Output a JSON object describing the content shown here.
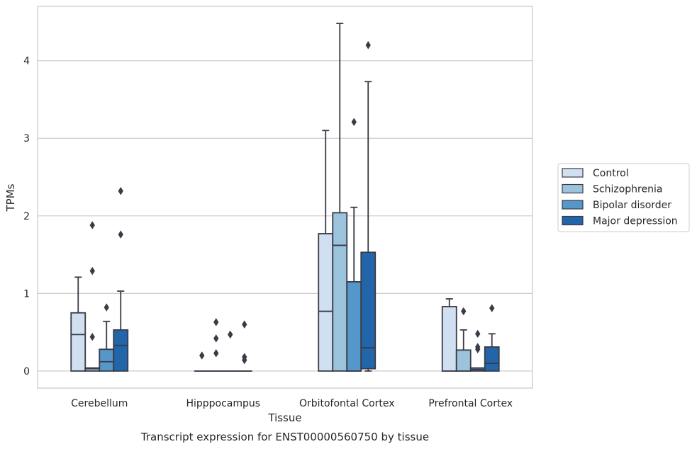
{
  "caption": "Transcript expression for ENST00000560750 by tissue",
  "chart_data": {
    "type": "box",
    "xlabel": "Tissue",
    "ylabel": "TPMs",
    "ylim": [
      -0.22,
      4.7
    ],
    "yticks": [
      0,
      1,
      2,
      3,
      4
    ],
    "grid": true,
    "legend_position": "right",
    "categories": [
      "Cerebellum",
      "Hipppocampus",
      "Orbitofontal Cortex",
      "Prefrontal Cortex"
    ],
    "series": [
      {
        "name": "Control",
        "color": "#d1e0f0",
        "boxes": [
          {
            "q1": 0,
            "median": 0.47,
            "q3": 0.75,
            "whisker_low": 0,
            "whisker_high": 1.21,
            "outliers": []
          },
          {
            "q1": 0,
            "median": 0,
            "q3": 0,
            "whisker_low": 0,
            "whisker_high": 0,
            "outliers": [
              0.2
            ]
          },
          {
            "q1": 0,
            "median": 0.77,
            "q3": 1.77,
            "whisker_low": 0,
            "whisker_high": 3.1,
            "outliers": []
          },
          {
            "q1": 0,
            "median": 0,
            "q3": 0.83,
            "whisker_low": 0,
            "whisker_high": 0.93,
            "outliers": []
          }
        ]
      },
      {
        "name": "Schizophrenia",
        "color": "#9cc3dc",
        "boxes": [
          {
            "q1": 0,
            "median": 0.03,
            "q3": 0.04,
            "whisker_low": 0,
            "whisker_high": 0.04,
            "outliers": [
              0.44,
              1.29,
              1.88
            ]
          },
          {
            "q1": 0,
            "median": 0,
            "q3": 0,
            "whisker_low": 0,
            "whisker_high": 0,
            "outliers": [
              0.23,
              0.42,
              0.63
            ]
          },
          {
            "q1": 0,
            "median": 1.62,
            "q3": 2.04,
            "whisker_low": 0,
            "whisker_high": 4.48,
            "outliers": []
          },
          {
            "q1": 0,
            "median": 0,
            "q3": 0.27,
            "whisker_low": 0,
            "whisker_high": 0.53,
            "outliers": [
              0.77
            ]
          }
        ]
      },
      {
        "name": "Bipolar disorder",
        "color": "#5597c8",
        "boxes": [
          {
            "q1": 0,
            "median": 0.12,
            "q3": 0.28,
            "whisker_low": 0,
            "whisker_high": 0.64,
            "outliers": [
              0.82
            ]
          },
          {
            "q1": 0,
            "median": 0,
            "q3": 0,
            "whisker_low": 0,
            "whisker_high": 0,
            "outliers": [
              0.47
            ]
          },
          {
            "q1": 0,
            "median": 0,
            "q3": 1.15,
            "whisker_low": 0,
            "whisker_high": 2.11,
            "outliers": [
              3.21
            ]
          },
          {
            "q1": 0,
            "median": 0.02,
            "q3": 0.04,
            "whisker_low": 0,
            "whisker_high": 0.04,
            "outliers": [
              0.28,
              0.31,
              0.48
            ]
          }
        ]
      },
      {
        "name": "Major depression",
        "color": "#2265a8",
        "boxes": [
          {
            "q1": 0,
            "median": 0.33,
            "q3": 0.53,
            "whisker_low": 0,
            "whisker_high": 1.03,
            "outliers": [
              1.76,
              2.32
            ]
          },
          {
            "q1": 0,
            "median": 0,
            "q3": 0,
            "whisker_low": 0,
            "whisker_high": 0,
            "outliers": [
              0.14,
              0.18,
              0.6
            ]
          },
          {
            "q1": 0.03,
            "median": 0.3,
            "q3": 1.53,
            "whisker_low": 0,
            "whisker_high": 3.73,
            "outliers": [
              4.2
            ]
          },
          {
            "q1": 0,
            "median": 0.1,
            "q3": 0.31,
            "whisker_low": 0,
            "whisker_high": 0.48,
            "outliers": [
              0.81
            ]
          }
        ]
      }
    ]
  }
}
